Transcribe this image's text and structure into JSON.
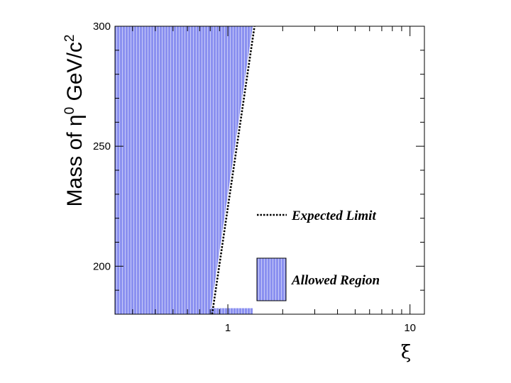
{
  "chart_data": {
    "type": "area",
    "title": "",
    "xlabel": "ξ",
    "ylabel_main": "Mass of η",
    "ylabel_sup1": "0",
    "ylabel_unit": " GeV/c",
    "ylabel_sup2": "2",
    "xscale": "log",
    "xlim": [
      0.24,
      12
    ],
    "ylim": [
      180,
      300
    ],
    "x_ticks": [
      {
        "value": 1,
        "label": "1"
      },
      {
        "value": 10,
        "label": "10"
      }
    ],
    "y_ticks": [
      {
        "value": 200,
        "label": "200"
      },
      {
        "value": 250,
        "label": "250"
      },
      {
        "value": 300,
        "label": "300"
      }
    ],
    "series": [
      {
        "name": "Allowed Region",
        "kind": "filled-region",
        "color": "#8a90f0",
        "boundary": [
          {
            "x": 0.24,
            "y": 180
          },
          {
            "x": 0.8,
            "y": 180
          },
          {
            "x": 1.37,
            "y": 300
          },
          {
            "x": 0.24,
            "y": 300
          }
        ],
        "extra_strip": {
          "x": [
            0.8,
            1.37
          ],
          "y": [
            180,
            182.5
          ]
        }
      },
      {
        "name": "Expected Limit",
        "kind": "dotted-line",
        "color": "#000000",
        "points": [
          {
            "x": 0.82,
            "y": 180
          },
          {
            "x": 1.4,
            "y": 300
          }
        ]
      }
    ],
    "legend": {
      "placement": "lower-right",
      "entries": [
        {
          "label": "Expected Limit",
          "style": "dotted"
        },
        {
          "label": "Allowed Region",
          "style": "fill"
        }
      ]
    }
  }
}
